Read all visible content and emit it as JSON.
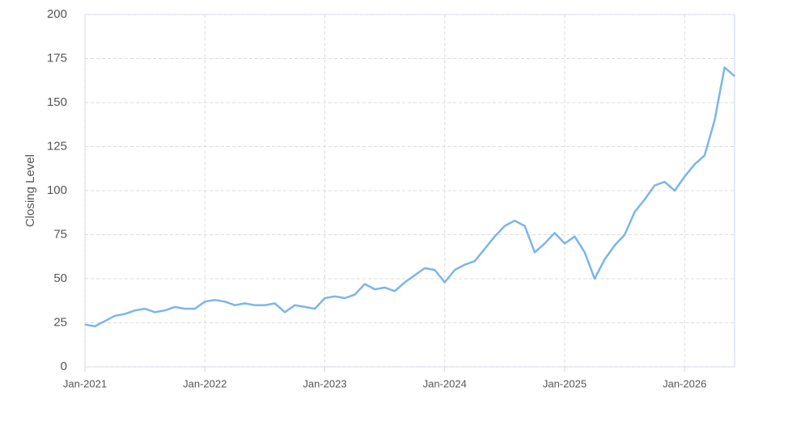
{
  "chart_data": {
    "type": "line",
    "y_label": "Closing Level",
    "x": [
      "2021-01",
      "2021-02",
      "2021-03",
      "2021-04",
      "2021-05",
      "2021-06",
      "2021-07",
      "2021-08",
      "2021-09",
      "2021-10",
      "2021-11",
      "2021-12",
      "2022-01",
      "2022-02",
      "2022-03",
      "2022-04",
      "2022-05",
      "2022-06",
      "2022-07",
      "2022-08",
      "2022-09",
      "2022-10",
      "2022-11",
      "2022-12",
      "2023-01",
      "2023-02",
      "2023-03",
      "2023-04",
      "2023-05",
      "2023-06",
      "2023-07",
      "2023-08",
      "2023-09",
      "2023-10",
      "2023-11",
      "2023-12",
      "2024-01",
      "2024-02",
      "2024-03",
      "2024-04",
      "2024-05",
      "2024-06",
      "2024-07",
      "2024-08",
      "2024-09",
      "2024-10",
      "2024-11",
      "2024-12",
      "2025-01",
      "2025-02",
      "2025-03",
      "2025-04",
      "2025-05",
      "2025-06",
      "2025-07",
      "2025-08",
      "2025-09",
      "2025-10",
      "2025-11",
      "2025-12",
      "2026-01",
      "2026-02",
      "2026-03",
      "2026-04",
      "2026-05",
      "2026-06"
    ],
    "series": [
      {
        "color": "#7cb5ec",
        "values": [
          24,
          23,
          26,
          29,
          30,
          32,
          33,
          31,
          32,
          34,
          33,
          33,
          37,
          38,
          37,
          35,
          36,
          35,
          35,
          36,
          31,
          35,
          34,
          33,
          39,
          40,
          39,
          41,
          47,
          44,
          45,
          43,
          48,
          52,
          56,
          55,
          48,
          55,
          58,
          60,
          67,
          74,
          80,
          83,
          80,
          65,
          70,
          76,
          70,
          74,
          65,
          50,
          61,
          69,
          75,
          88,
          95,
          103,
          105,
          100,
          108,
          115,
          120,
          140,
          170,
          165
        ]
      }
    ],
    "xlim": [
      "2021-01",
      "2026-06"
    ],
    "xticks": [
      {
        "value": "2021-01",
        "label": "Jan-2021"
      },
      {
        "value": "2022-01",
        "label": "Jan-2022"
      },
      {
        "value": "2023-01",
        "label": "Jan-2023"
      },
      {
        "value": "2024-01",
        "label": "Jan-2024"
      },
      {
        "value": "2025-01",
        "label": "Jan-2025"
      },
      {
        "value": "2026-01",
        "label": "Jan-2026"
      }
    ],
    "ylim": [
      0,
      200
    ],
    "yticks": [
      0,
      25,
      50,
      75,
      100,
      125,
      150,
      175,
      200
    ],
    "grid": true
  }
}
